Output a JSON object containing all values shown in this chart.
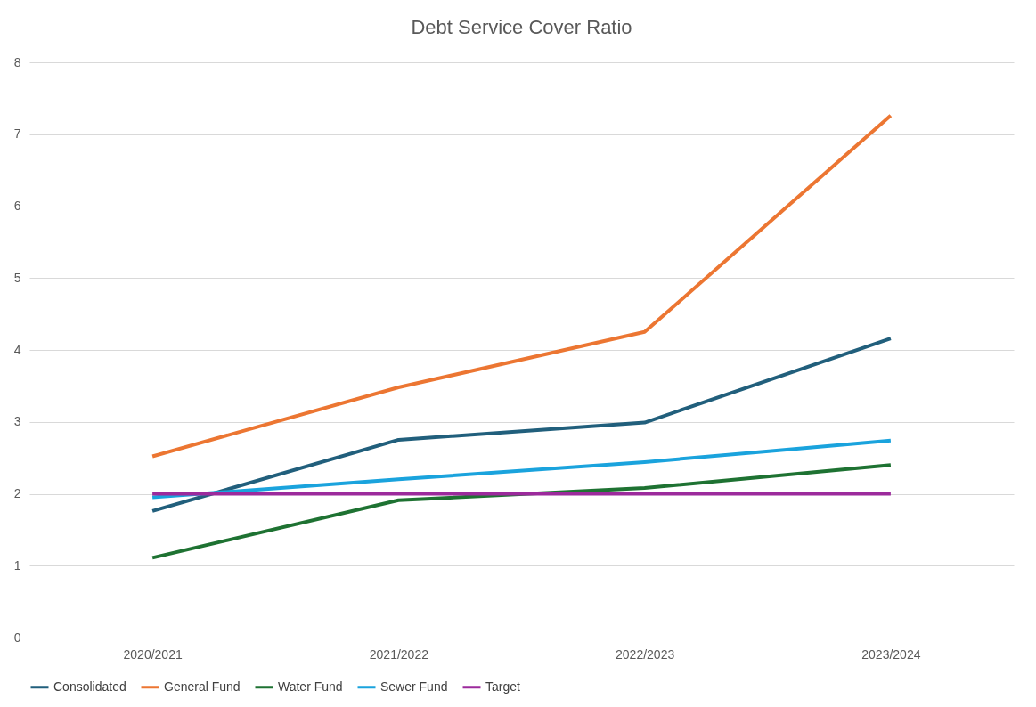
{
  "chart_data": {
    "type": "line",
    "title": "Debt Service Cover Ratio",
    "categories": [
      "2020/2021",
      "2021/2022",
      "2022/2023",
      "2023/2024"
    ],
    "series": [
      {
        "name": "Consolidated",
        "color": "#215f7c",
        "values": [
          1.76,
          2.75,
          2.99,
          4.16
        ]
      },
      {
        "name": "General Fund",
        "color": "#ec7632",
        "values": [
          2.52,
          3.48,
          4.25,
          7.26
        ]
      },
      {
        "name": "Water Fund",
        "color": "#1e7232",
        "values": [
          1.11,
          1.91,
          2.08,
          2.4
        ]
      },
      {
        "name": "Sewer Fund",
        "color": "#1aa3dd",
        "values": [
          1.95,
          2.2,
          2.44,
          2.74
        ]
      },
      {
        "name": "Target",
        "color": "#9c2a9c",
        "values": [
          2,
          2,
          2,
          2
        ]
      }
    ],
    "ylim": [
      0,
      8
    ],
    "yticks": [
      0,
      1,
      2,
      3,
      4,
      5,
      6,
      7,
      8
    ],
    "grid": "y",
    "legend": "bottom",
    "marker": "none",
    "line_style": "solid"
  }
}
